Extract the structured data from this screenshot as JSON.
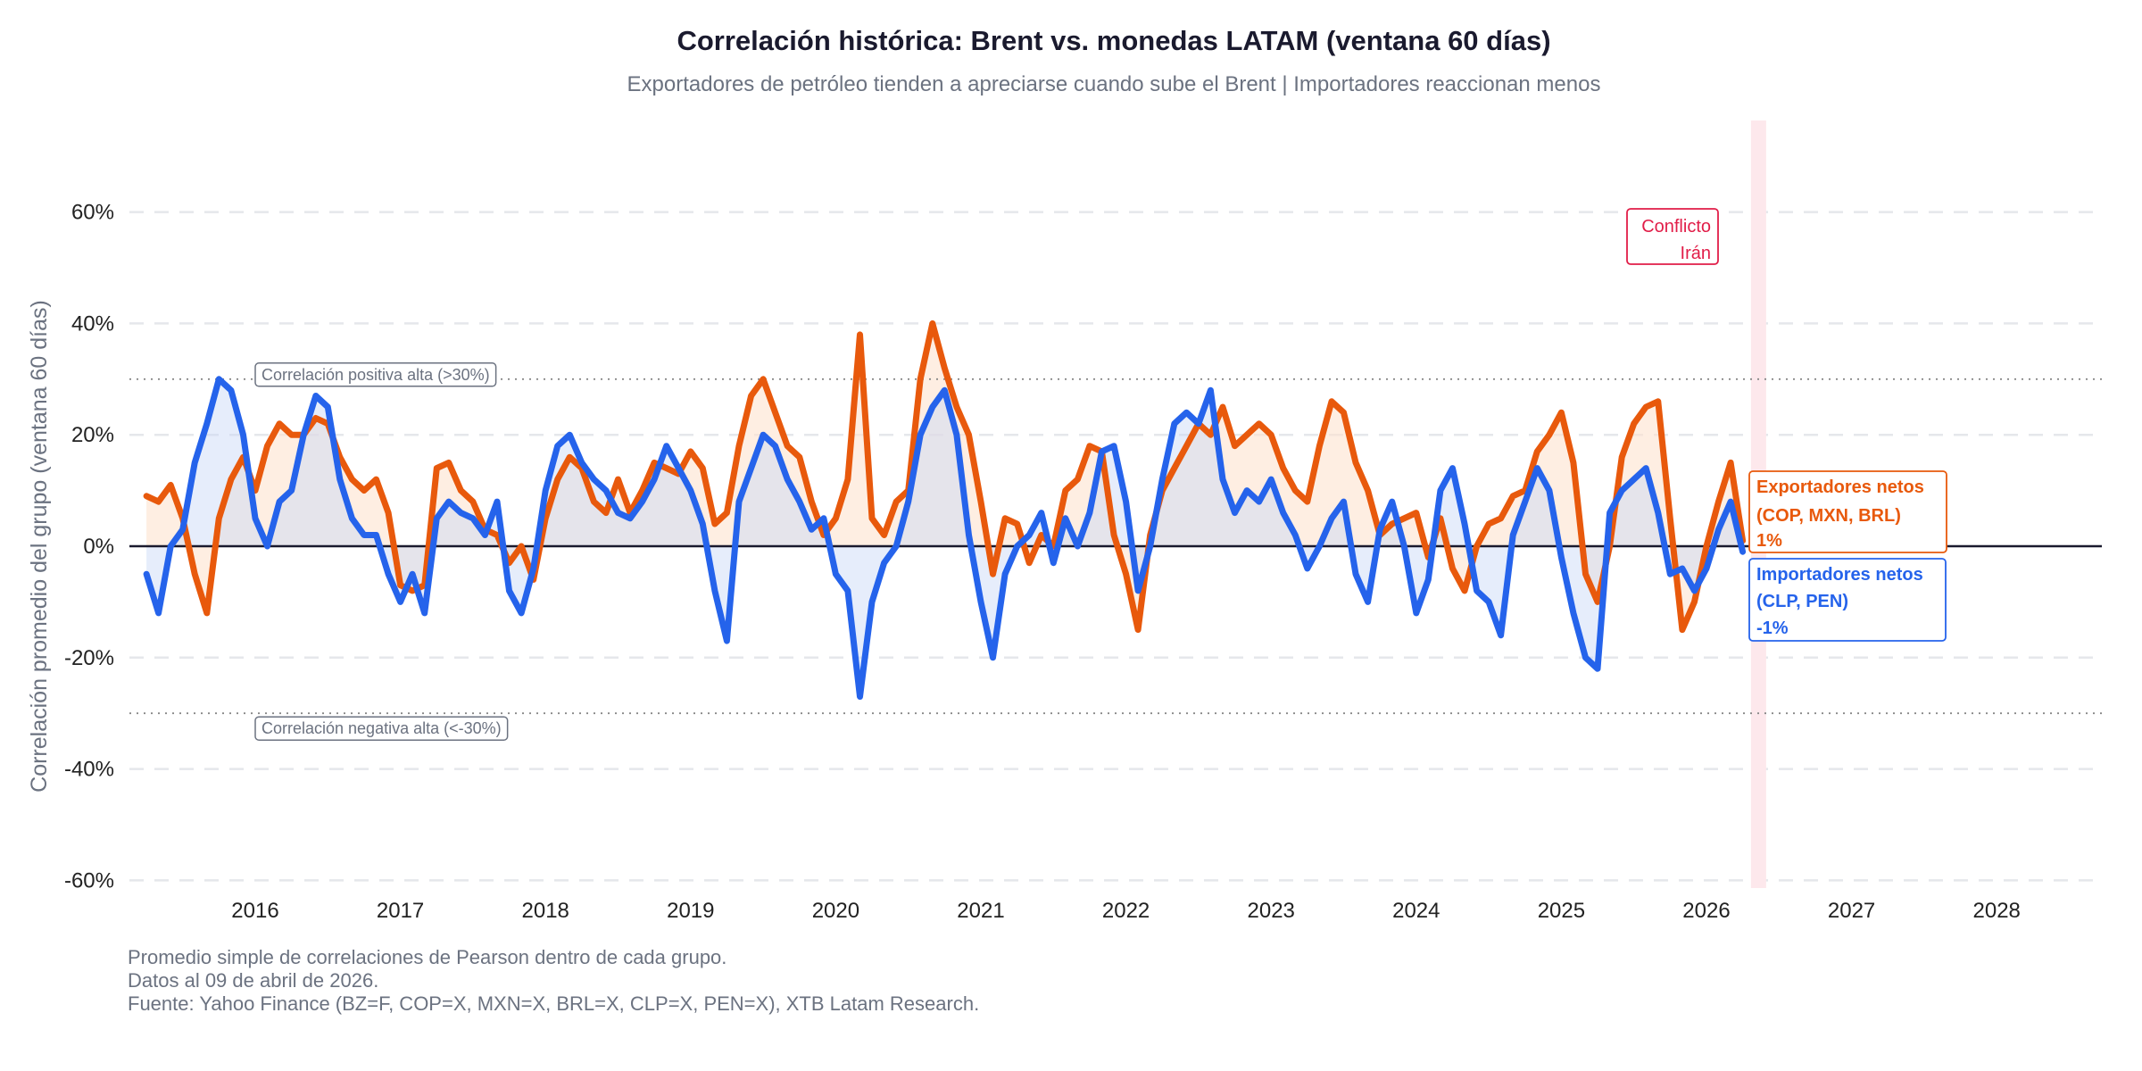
{
  "chart_data": {
    "type": "line",
    "title": "Correlación histórica: Brent vs. monedas LATAM (ventana 60 días)",
    "subtitle": "Exportadores de petróleo tienden a apreciarse cuando sube el Brent | Importadores reaccionan menos",
    "ylabel": "Correlación promedio del grupo (ventana 60 días)",
    "xlabel": "",
    "ylim": [
      -0.6,
      0.75
    ],
    "xlim": [
      "2015-02",
      "2028-10"
    ],
    "yticks": [
      "60%",
      "40%",
      "20%",
      "0%",
      "-20%",
      "-40%",
      "-60%"
    ],
    "ytick_values": [
      0.6,
      0.4,
      0.2,
      0,
      -0.2,
      -0.4,
      -0.6
    ],
    "xticks": [
      "2016",
      "2017",
      "2018",
      "2019",
      "2020",
      "2021",
      "2022",
      "2023",
      "2024",
      "2025",
      "2026",
      "2027",
      "2028"
    ],
    "grid": "horizontal dashed",
    "start": "2015-04",
    "frequency": "monthly",
    "series": [
      {
        "name": "Exportadores netos (COP, MXN, BRL)",
        "color": "#e8590c",
        "values": [
          0.09,
          0.08,
          0.11,
          0.05,
          -0.05,
          -0.12,
          0.05,
          0.12,
          0.16,
          0.1,
          0.18,
          0.22,
          0.2,
          0.2,
          0.23,
          0.22,
          0.16,
          0.12,
          0.1,
          0.12,
          0.06,
          -0.07,
          -0.08,
          -0.07,
          0.14,
          0.15,
          0.1,
          0.08,
          0.03,
          0.02,
          -0.03,
          0.0,
          -0.06,
          0.05,
          0.12,
          0.16,
          0.14,
          0.08,
          0.06,
          0.12,
          0.06,
          0.1,
          0.15,
          0.14,
          0.13,
          0.17,
          0.14,
          0.04,
          0.06,
          0.18,
          0.27,
          0.3,
          0.24,
          0.18,
          0.16,
          0.08,
          0.02,
          0.05,
          0.12,
          0.38,
          0.05,
          0.02,
          0.08,
          0.1,
          0.3,
          0.4,
          0.32,
          0.25,
          0.2,
          0.08,
          -0.05,
          0.05,
          0.04,
          -0.03,
          0.02,
          0.0,
          0.1,
          0.12,
          0.18,
          0.17,
          0.02,
          -0.05,
          -0.15,
          0.02,
          0.1,
          0.14,
          0.18,
          0.22,
          0.2,
          0.25,
          0.18,
          0.2,
          0.22,
          0.2,
          0.14,
          0.1,
          0.08,
          0.18,
          0.26,
          0.24,
          0.15,
          0.1,
          0.02,
          0.04,
          0.05,
          0.06,
          -0.02,
          0.05,
          -0.04,
          -0.08,
          0.0,
          0.04,
          0.05,
          0.09,
          0.1,
          0.17,
          0.2,
          0.24,
          0.15,
          -0.05,
          -0.1,
          0.0,
          0.16,
          0.22,
          0.25,
          0.26,
          0.05,
          -0.15,
          -0.1,
          0.0,
          0.08,
          0.15,
          0.01
        ]
      },
      {
        "name": "Importadores netos (CLP, PEN)",
        "color": "#2563eb",
        "values": [
          -0.05,
          -0.12,
          0.0,
          0.03,
          0.15,
          0.22,
          0.3,
          0.28,
          0.2,
          0.05,
          0.0,
          0.08,
          0.1,
          0.2,
          0.27,
          0.25,
          0.12,
          0.05,
          0.02,
          0.02,
          -0.05,
          -0.1,
          -0.05,
          -0.12,
          0.05,
          0.08,
          0.06,
          0.05,
          0.02,
          0.08,
          -0.08,
          -0.12,
          -0.04,
          0.1,
          0.18,
          0.2,
          0.15,
          0.12,
          0.1,
          0.06,
          0.05,
          0.08,
          0.12,
          0.18,
          0.14,
          0.1,
          0.04,
          -0.08,
          -0.17,
          0.08,
          0.14,
          0.2,
          0.18,
          0.12,
          0.08,
          0.03,
          0.05,
          -0.05,
          -0.08,
          -0.27,
          -0.1,
          -0.03,
          0.0,
          0.08,
          0.2,
          0.25,
          0.28,
          0.2,
          0.02,
          -0.1,
          -0.2,
          -0.05,
          0.0,
          0.02,
          0.06,
          -0.03,
          0.05,
          0.0,
          0.06,
          0.17,
          0.18,
          0.08,
          -0.08,
          0.0,
          0.12,
          0.22,
          0.24,
          0.22,
          0.28,
          0.12,
          0.06,
          0.1,
          0.08,
          0.12,
          0.06,
          0.02,
          -0.04,
          0.0,
          0.05,
          0.08,
          -0.05,
          -0.1,
          0.03,
          0.08,
          0.0,
          -0.12,
          -0.06,
          0.1,
          0.14,
          0.04,
          -0.08,
          -0.1,
          -0.16,
          0.02,
          0.08,
          0.14,
          0.1,
          -0.02,
          -0.12,
          -0.2,
          -0.22,
          0.06,
          0.1,
          0.12,
          0.14,
          0.06,
          -0.05,
          -0.04,
          -0.08,
          -0.04,
          0.03,
          0.08,
          -0.01
        ]
      }
    ],
    "reference_lines": [
      {
        "value": 0.3,
        "label": "Correlación positiva alta (>30%)"
      },
      {
        "value": -0.3,
        "label": "Correlación negativa alta (<-30%)"
      }
    ],
    "event": {
      "label_line1": "Conflicto",
      "label_line2": "Irán",
      "start": "2026-03",
      "end": "2026-04",
      "color": "#e11d48"
    },
    "end_labels": {
      "exporters": {
        "line1": "Exportadores netos",
        "line2": "(COP, MXN, BRL)",
        "value": "1%",
        "color": "#e8590c"
      },
      "importers": {
        "line1": "Importadores netos",
        "line2": "(CLP, PEN)",
        "value": "-1%",
        "color": "#2563eb"
      }
    }
  },
  "footer": {
    "line1": "Promedio simple de correlaciones de Pearson dentro de cada grupo.",
    "line2": "Datos al 09 de abril de 2026.",
    "line3": "Fuente: Yahoo Finance (BZ=F, COP=X, MXN=X, BRL=X, CLP=X, PEN=X), XTB Latam Research."
  }
}
